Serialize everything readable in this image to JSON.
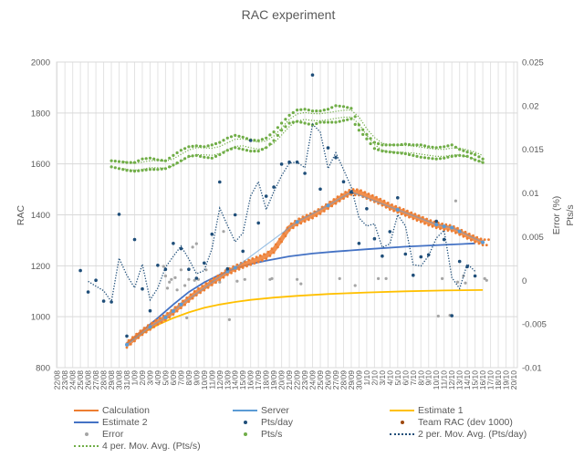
{
  "chart_data": {
    "type": "line",
    "title": "RAC experiment",
    "ylabel": "RAC",
    "y2labels": [
      "Error (%)",
      "Pts/s"
    ],
    "ylim": [
      800,
      2000
    ],
    "yticks": [
      "800",
      "1000",
      "1200",
      "1400",
      "1600",
      "1800",
      "2000"
    ],
    "y2lim": [
      -0.01,
      0.025
    ],
    "y2ticks": [
      "-0.01",
      "-0.005",
      "0",
      "0.005",
      "0.01",
      "0.015",
      "0.02",
      "0.025"
    ],
    "grid": true,
    "legend_position": "bottom",
    "categories": [
      "22/08",
      "23/08",
      "24/08",
      "25/08",
      "26/08",
      "27/08",
      "28/08",
      "29/08",
      "30/08",
      "31/08",
      "1/09",
      "2/09",
      "3/09",
      "4/09",
      "5/09",
      "6/09",
      "7/09",
      "8/09",
      "9/09",
      "10/09",
      "11/09",
      "12/09",
      "13/09",
      "14/09",
      "15/09",
      "16/09",
      "17/09",
      "18/09",
      "19/09",
      "20/09",
      "21/09",
      "22/09",
      "23/09",
      "24/09",
      "25/09",
      "26/09",
      "27/09",
      "28/09",
      "29/09",
      "30/09",
      "1/10",
      "2/10",
      "3/10",
      "4/10",
      "5/10",
      "6/10",
      "7/10",
      "8/10",
      "9/10",
      "10/10",
      "11/10",
      "12/10",
      "13/10",
      "14/10",
      "15/10",
      "16/10",
      "17/10",
      "18/10",
      "19/10",
      "20/10"
    ],
    "series": {
      "calculation": {
        "name": "Calculation",
        "color": "#ed7d31",
        "axis": "left",
        "start": "31/08",
        "values": [
          890,
          915,
          940,
          960,
          980,
          997,
          1020,
          1045,
          1070,
          1095,
          1115,
          1135,
          1155,
          1175,
          1190,
          1203,
          1215,
          1226,
          1238,
          1262,
          1305,
          1350,
          1370,
          1385,
          1398,
          1415,
          1435,
          1455,
          1475,
          1490,
          1488,
          1475,
          1462,
          1448,
          1432,
          1420,
          1408,
          1395,
          1383,
          1370,
          1360,
          1352,
          1347,
          1333,
          1318,
          1304,
          1292
        ]
      },
      "server": {
        "name": "Server",
        "color": "#5b9bd5",
        "axis": "left",
        "points": [
          [
            "31/08",
            890
          ],
          [
            "3/09",
            960
          ],
          [
            "5/09",
            997
          ],
          [
            "6/09",
            1022
          ],
          [
            "7/09",
            1048
          ],
          [
            "13/09",
            1178
          ],
          [
            "14/09",
            1192
          ],
          [
            "22/09",
            1372
          ],
          [
            "26/09",
            1437
          ],
          [
            "29/09",
            1490
          ],
          [
            "5/10",
            1420
          ],
          [
            "10/10",
            1362
          ],
          [
            "11/10",
            1355
          ],
          [
            "12/10",
            1350
          ],
          [
            "13/10",
            1335
          ],
          [
            "16/10",
            1292
          ]
        ]
      },
      "estimate1": {
        "name": "Estimate 1",
        "color": "#ffc000",
        "axis": "left",
        "points": [
          [
            "31/08",
            895
          ],
          [
            "2/09",
            935
          ],
          [
            "4/09",
            968
          ],
          [
            "6/09",
            995
          ],
          [
            "8/09",
            1017
          ],
          [
            "10/09",
            1035
          ],
          [
            "12/09",
            1048
          ],
          [
            "14/09",
            1058
          ],
          [
            "16/09",
            1066
          ],
          [
            "19/09",
            1075
          ],
          [
            "22/09",
            1082
          ],
          [
            "26/09",
            1089
          ],
          [
            "1/10",
            1095
          ],
          [
            "6/10",
            1100
          ],
          [
            "11/10",
            1103
          ],
          [
            "16/10",
            1105
          ]
        ]
      },
      "estimate2": {
        "name": "Estimate 2",
        "color": "#4472c4",
        "axis": "left",
        "points": [
          [
            "31/08",
            895
          ],
          [
            "2/09",
            945
          ],
          [
            "4/09",
            995
          ],
          [
            "6/09",
            1048
          ],
          [
            "8/09",
            1097
          ],
          [
            "10/09",
            1135
          ],
          [
            "12/09",
            1165
          ],
          [
            "14/09",
            1190
          ],
          [
            "16/09",
            1207
          ],
          [
            "18/09",
            1220
          ],
          [
            "21/09",
            1237
          ],
          [
            "24/09",
            1248
          ],
          [
            "27/09",
            1256
          ],
          [
            "1/10",
            1265
          ],
          [
            "6/10",
            1275
          ],
          [
            "11/10",
            1282
          ],
          [
            "15/10",
            1288
          ]
        ]
      },
      "pts_day": {
        "name": "Pts/day",
        "color": "#1f4e79",
        "axis": "left",
        "start": "25/08",
        "values": [
          1181,
          1097,
          1143,
          1061,
          1058,
          1402,
          924,
          1303,
          1109,
          1023,
          1202,
          1186,
          1288,
          1267,
          1186,
          1151,
          1211,
          1324,
          1529,
          1188,
          1400,
          1257,
          1692,
          1368,
          1473,
          1509,
          1599,
          1607,
          1607,
          1563,
          1949,
          1501,
          1663,
          1625,
          1530,
          1489,
          1288,
          1424,
          1306,
          1238,
          1334,
          1467,
          1246,
          1163,
          1235,
          1243,
          1375,
          1303,
          1004,
          1217,
          1197,
          1160
        ]
      },
      "team_rac": {
        "name": "Team RAC (dev 1000)",
        "color": "#9e480e",
        "axis": "left"
      },
      "error": {
        "name": "Error",
        "color": "#a5a5a5",
        "axis": "right",
        "points": [
          [
            "4/09 18:00",
            0.0016
          ],
          [
            "5/09 00:00",
            0.0005
          ],
          [
            "5/09 06:00",
            -0.0009
          ],
          [
            "5/09 12:00",
            -0.0002
          ],
          [
            "5/09 18:00",
            0.0001
          ],
          [
            "6/09 06:00",
            0.0003
          ],
          [
            "6/09 12:00",
            -0.0011
          ],
          [
            "7/09 00:00",
            0.0012
          ],
          [
            "7/09 12:00",
            -0.0006
          ],
          [
            "7/09 18:00",
            -0.0043
          ],
          [
            "8/09 00:00",
            0.0001
          ],
          [
            "8/09 12:00",
            0.0038
          ],
          [
            "8/09 18:00",
            0.0
          ],
          [
            "9/09 00:00",
            0.0042
          ],
          [
            "9/09 06:00",
            0.0001
          ],
          [
            "10/09 06:00",
            0.0012
          ],
          [
            "11/09 00:00",
            -0.0001
          ],
          [
            "12/09 00:00",
            -0.0002
          ],
          [
            "12/09 12:00",
            0.0056
          ],
          [
            "13/09 06:00",
            -0.0045
          ],
          [
            "14/09 06:00",
            -0.0001
          ],
          [
            "15/09 06:00",
            0.0001
          ],
          [
            "18/09 12:00",
            0.0001
          ],
          [
            "18/09 18:00",
            0.0002
          ],
          [
            "22/09 00:00",
            0.0001
          ],
          [
            "22/09 12:00",
            -0.0004
          ],
          [
            "27/09 12:00",
            0.0002
          ],
          [
            "29/09 12:00",
            -0.0006
          ],
          [
            "2/10 12:00",
            0.0002
          ],
          [
            "3/10 12:00",
            0.0002
          ],
          [
            "10/10 06:00",
            -0.0041
          ],
          [
            "10/10 18:00",
            0.0002
          ],
          [
            "11/10 18:00",
            -0.004
          ],
          [
            "12/10 12:00",
            0.0091
          ],
          [
            "12/10 18:00",
            -0.0002
          ],
          [
            "13/10 12:00",
            0.0005
          ],
          [
            "13/10 18:00",
            -0.0003
          ],
          [
            "16/10 06:00",
            0.0002
          ],
          [
            "16/10 12:00",
            0.0
          ]
        ]
      },
      "pts_s": {
        "name": "Pts/s",
        "color": "#70ad47",
        "axis": "right",
        "start": "29/08",
        "upper": [
          0.0137,
          0.0136,
          0.0135,
          0.0135,
          0.0139,
          0.014,
          0.0138,
          0.0137,
          0.0143,
          0.0149,
          0.0153,
          0.0154,
          0.0153,
          0.0155,
          0.0158,
          0.0163,
          0.0166,
          0.0164,
          0.0161,
          0.016,
          0.0163,
          0.017,
          0.018,
          0.0189,
          0.0195,
          0.0196,
          0.0194,
          0.0194,
          0.0196,
          0.02,
          0.0199,
          0.0197,
          0.0178,
          0.0167,
          0.0158,
          0.0155,
          0.0155,
          0.0155,
          0.0156,
          0.0155,
          0.0155,
          0.0153,
          0.0152,
          0.0153,
          0.0155,
          0.015,
          0.0147,
          0.0144,
          0.0139
        ],
        "lower": [
          0.013,
          0.0128,
          0.0126,
          0.0125,
          0.0126,
          0.0127,
          0.0127,
          0.0128,
          0.0132,
          0.0137,
          0.0142,
          0.0143,
          0.0141,
          0.014,
          0.0144,
          0.0149,
          0.0152,
          0.015,
          0.0148,
          0.0148,
          0.0152,
          0.016,
          0.0172,
          0.018,
          0.0182,
          0.018,
          0.0178,
          0.0181,
          0.0181,
          0.0181,
          0.0183,
          0.0185,
          0.0172,
          0.0162,
          0.0151,
          0.0148,
          0.0147,
          0.0146,
          0.0145,
          0.0143,
          0.0141,
          0.014,
          0.0139,
          0.014,
          0.0142,
          0.0143,
          0.0142,
          0.0138,
          0.0135
        ]
      },
      "ma_pts_day": {
        "name": "2 per. Mov. Avg. (Pts/day)",
        "color": "#1f4e79"
      },
      "ma_pts_s": {
        "name": "4 per. Mov. Avg. (Pts/s)",
        "color": "#70ad47"
      }
    },
    "legend": [
      "Calculation",
      "Server",
      "Estimate 1",
      "Estimate 2",
      "Pts/day",
      "Team RAC (dev 1000)",
      "Error",
      "Pts/s",
      "2 per. Mov. Avg. (Pts/day)",
      "4 per. Mov. Avg. (Pts/s)"
    ]
  }
}
